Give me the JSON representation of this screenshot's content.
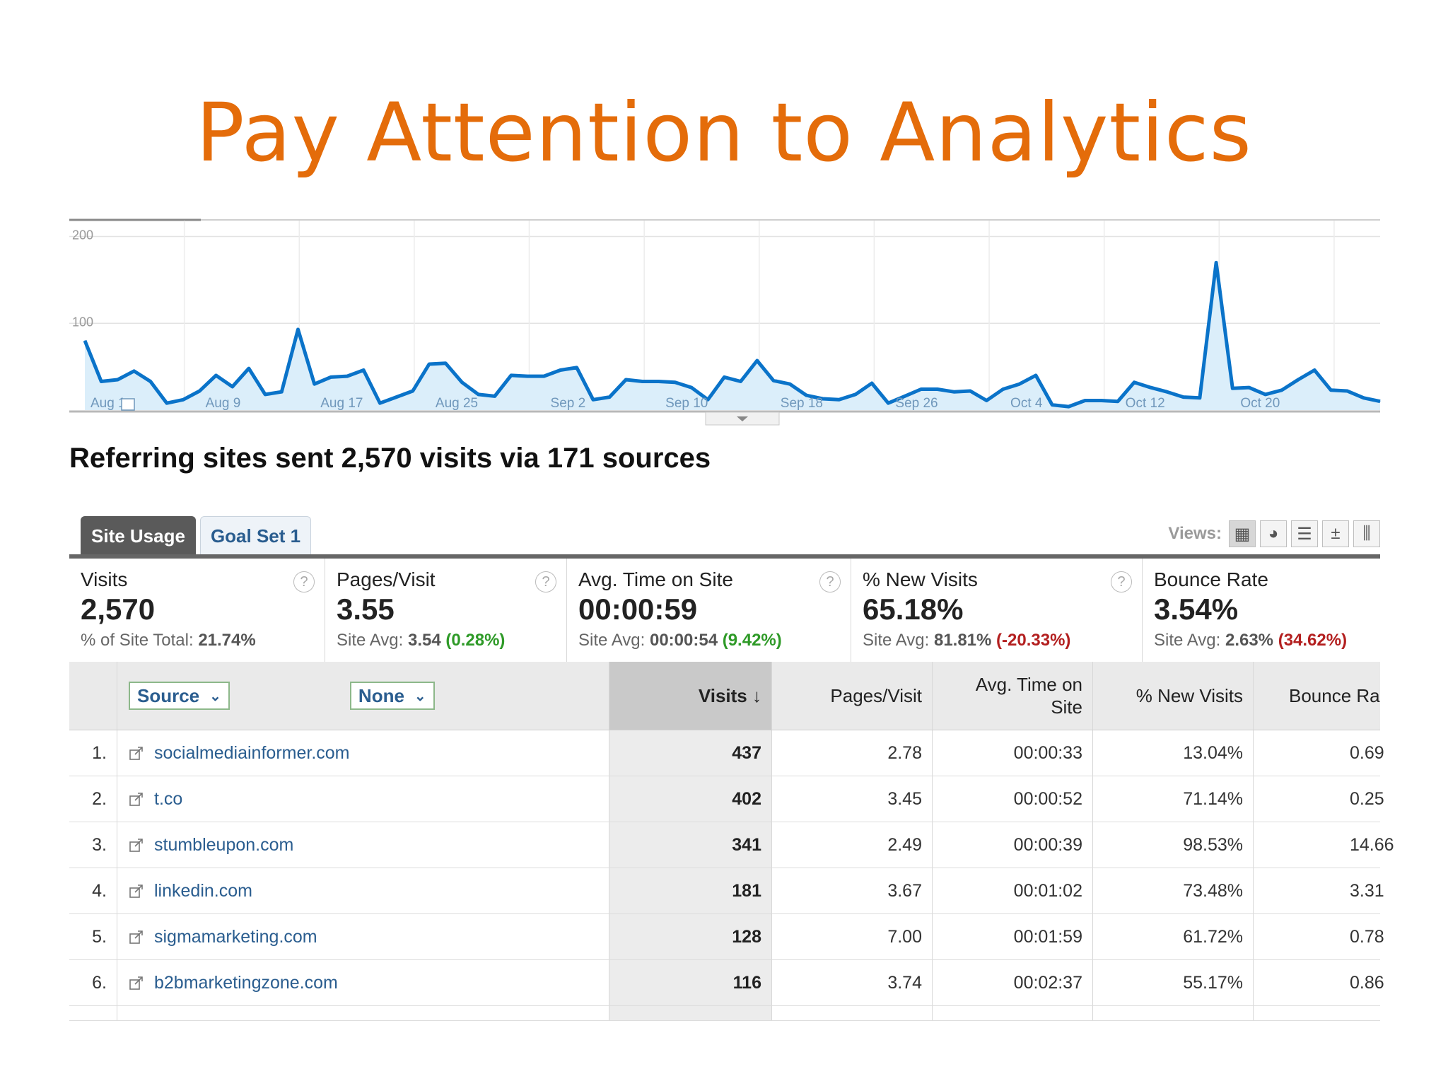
{
  "slide": {
    "title": "Pay Attention to Analytics"
  },
  "chart_data": {
    "type": "area",
    "y_ticks": [
      "200",
      "100"
    ],
    "ylim": [
      0,
      220
    ],
    "x_labels": [
      "Aug 1",
      "Aug 9",
      "Aug 17",
      "Aug 25",
      "Sep 2",
      "Sep 10",
      "Sep 18",
      "Sep 26",
      "Oct 4",
      "Oct 12",
      "Oct 20"
    ],
    "values": [
      80,
      33,
      35,
      45,
      33,
      8,
      12,
      22,
      40,
      27,
      48,
      18,
      21,
      93,
      30,
      38,
      39,
      46,
      8,
      15,
      22,
      53,
      54,
      32,
      18,
      16,
      40,
      39,
      39,
      46,
      49,
      12,
      15,
      35,
      33,
      33,
      32,
      26,
      12,
      38,
      33,
      57,
      34,
      30,
      17,
      13,
      12,
      18,
      31,
      8,
      16,
      24,
      24,
      21,
      22,
      11,
      24,
      30,
      40,
      6,
      4,
      11,
      11,
      10,
      32,
      26,
      21,
      15,
      14,
      170,
      25,
      26,
      18,
      23,
      35,
      46,
      23,
      22,
      14,
      10
    ],
    "grid": true
  },
  "headline": "Referring sites sent 2,570 visits via 171 sources",
  "tabs": [
    {
      "label": "Site Usage",
      "active": true
    },
    {
      "label": "Goal Set 1",
      "active": false
    }
  ],
  "views": {
    "label": "Views:",
    "buttons": [
      "table-view-icon",
      "pie-view-icon",
      "performance-view-icon",
      "comparison-view-icon",
      "pivot-view-icon"
    ]
  },
  "metrics": [
    {
      "label": "Visits",
      "value": "2,570",
      "sub_prefix": "% of Site Total: ",
      "sub_value": "21.74%",
      "delta": "",
      "delta_sign": ""
    },
    {
      "label": "Pages/Visit",
      "value": "3.55",
      "sub_prefix": "Site Avg: ",
      "sub_value": "3.54",
      "delta": "(0.28%)",
      "delta_sign": "pos"
    },
    {
      "label": "Avg. Time on Site",
      "value": "00:00:59",
      "sub_prefix": "Site Avg: ",
      "sub_value": "00:00:54",
      "delta": "(9.42%)",
      "delta_sign": "pos"
    },
    {
      "label": "% New Visits",
      "value": "65.18%",
      "sub_prefix": "Site Avg: ",
      "sub_value": "81.81%",
      "delta": "(-20.33%)",
      "delta_sign": "neg"
    },
    {
      "label": "Bounce Rate",
      "value": "3.54%",
      "sub_prefix": "Site Avg: ",
      "sub_value": "2.63%",
      "delta": "(34.62%)",
      "delta_sign": "neg"
    }
  ],
  "table": {
    "dimension_primary": "Source",
    "dimension_secondary": "None",
    "columns": {
      "visits": "Visits",
      "pages": "Pages/Visit",
      "time": "Avg. Time on Site",
      "new": "% New Visits",
      "bounce": "Bounce Ra"
    },
    "rows": [
      {
        "n": "1.",
        "source": "socialmediainformer.com",
        "visits": "437",
        "pages": "2.78",
        "time": "00:00:33",
        "new": "13.04%",
        "bounce": "0.69"
      },
      {
        "n": "2.",
        "source": "t.co",
        "visits": "402",
        "pages": "3.45",
        "time": "00:00:52",
        "new": "71.14%",
        "bounce": "0.25"
      },
      {
        "n": "3.",
        "source": "stumbleupon.com",
        "visits": "341",
        "pages": "2.49",
        "time": "00:00:39",
        "new": "98.53%",
        "bounce": "14.66"
      },
      {
        "n": "4.",
        "source": "linkedin.com",
        "visits": "181",
        "pages": "3.67",
        "time": "00:01:02",
        "new": "73.48%",
        "bounce": "3.31"
      },
      {
        "n": "5.",
        "source": "sigmamarketing.com",
        "visits": "128",
        "pages": "7.00",
        "time": "00:01:59",
        "new": "61.72%",
        "bounce": "0.78"
      },
      {
        "n": "6.",
        "source": "b2bmarketingzone.com",
        "visits": "116",
        "pages": "3.74",
        "time": "00:02:37",
        "new": "55.17%",
        "bounce": "0.86"
      }
    ]
  },
  "colors": {
    "title": "#e46c0a",
    "line": "#0a73c9",
    "fill": "#dbeefa",
    "link": "#2a5d8f",
    "positive": "#2e9a27",
    "negative": "#b31f1f"
  }
}
